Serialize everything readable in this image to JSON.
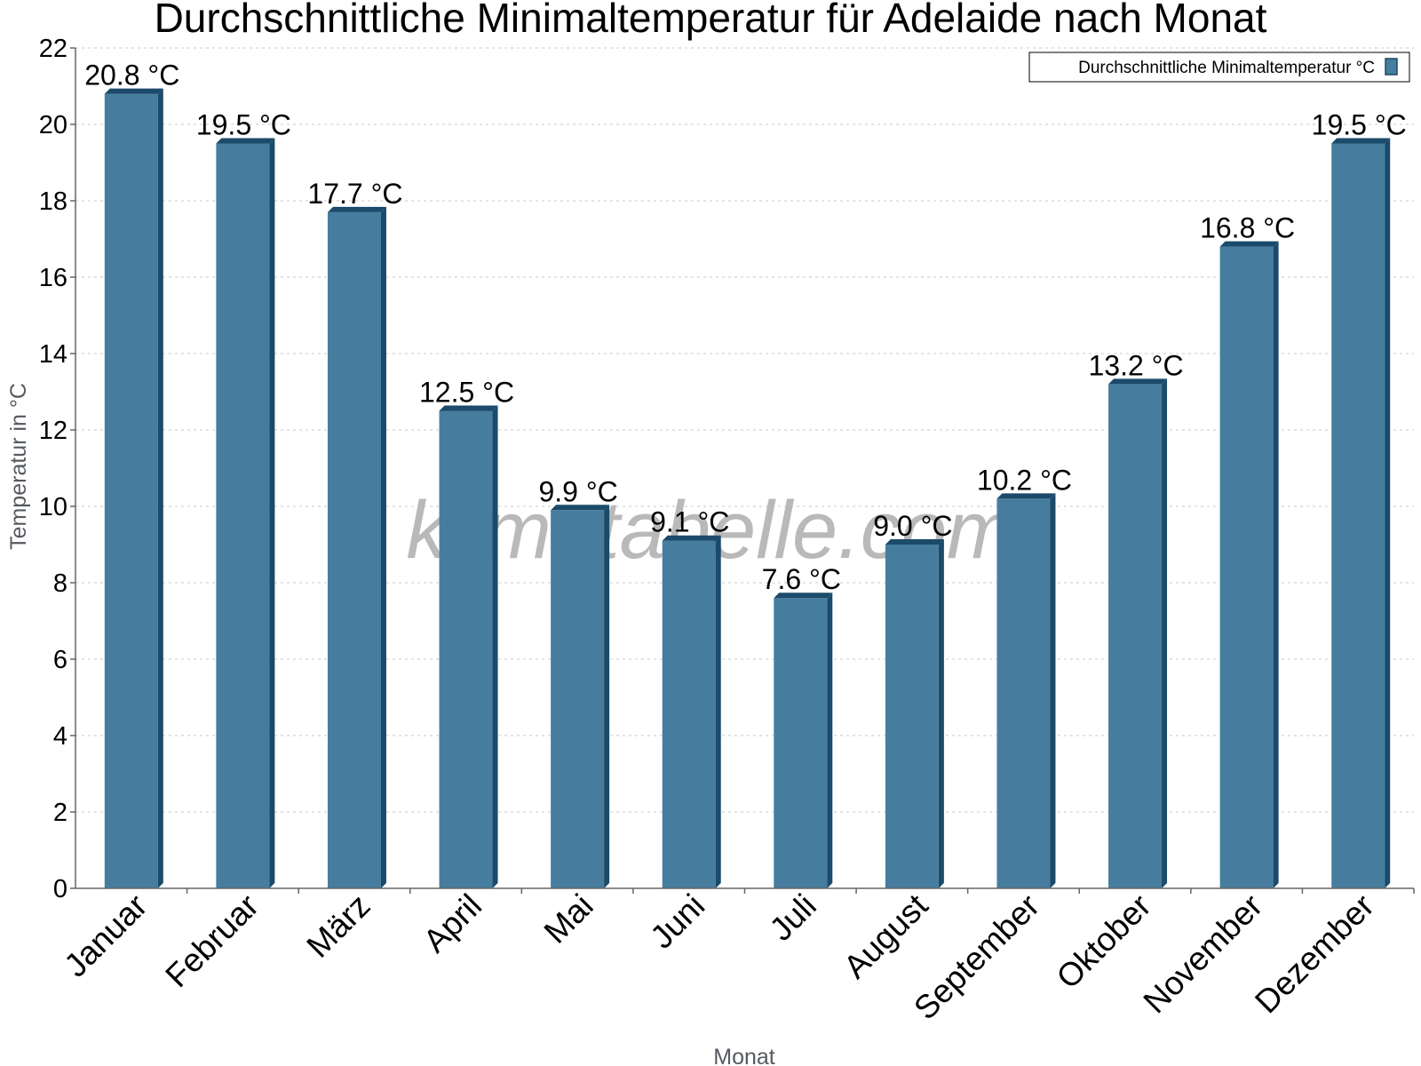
{
  "chart_data": {
    "type": "bar",
    "title": "Durchschnittliche Minimaltemperatur für Adelaide nach Monat",
    "xlabel": "Monat",
    "ylabel": "Temperatur in °C",
    "categories": [
      "Januar",
      "Februar",
      "März",
      "April",
      "Mai",
      "Juni",
      "Juli",
      "August",
      "September",
      "Oktober",
      "November",
      "Dezember"
    ],
    "series": [
      {
        "name": "Durchschnittliche Minimaltemperatur °C",
        "values": [
          20.8,
          19.5,
          17.7,
          12.5,
          9.9,
          9.1,
          7.6,
          9.0,
          10.2,
          13.2,
          16.8,
          19.5
        ],
        "data_labels": [
          "20.8 °C",
          "19.5 °C",
          "17.7 °C",
          "12.5 °C",
          "9.9 °C",
          "9.1 °C",
          "7.6 °C",
          "9.0 °C",
          "10.2 °C",
          "13.2 °C",
          "16.8 °C",
          "19.5 °C"
        ]
      }
    ],
    "ylim": [
      0,
      22
    ],
    "y_ticks": [
      0,
      2,
      4,
      6,
      8,
      10,
      12,
      14,
      16,
      18,
      20,
      22
    ],
    "grid": true,
    "legend_position": "top-right",
    "watermark": "klimatabelle.com"
  },
  "colors": {
    "bar_face": "#467d9e",
    "bar_side": "#1c4a6a",
    "bar_top": "#1c4a6a",
    "axis_title": "#555a60",
    "grid": "#c9c9c9",
    "watermark": "#b9b9b9"
  }
}
